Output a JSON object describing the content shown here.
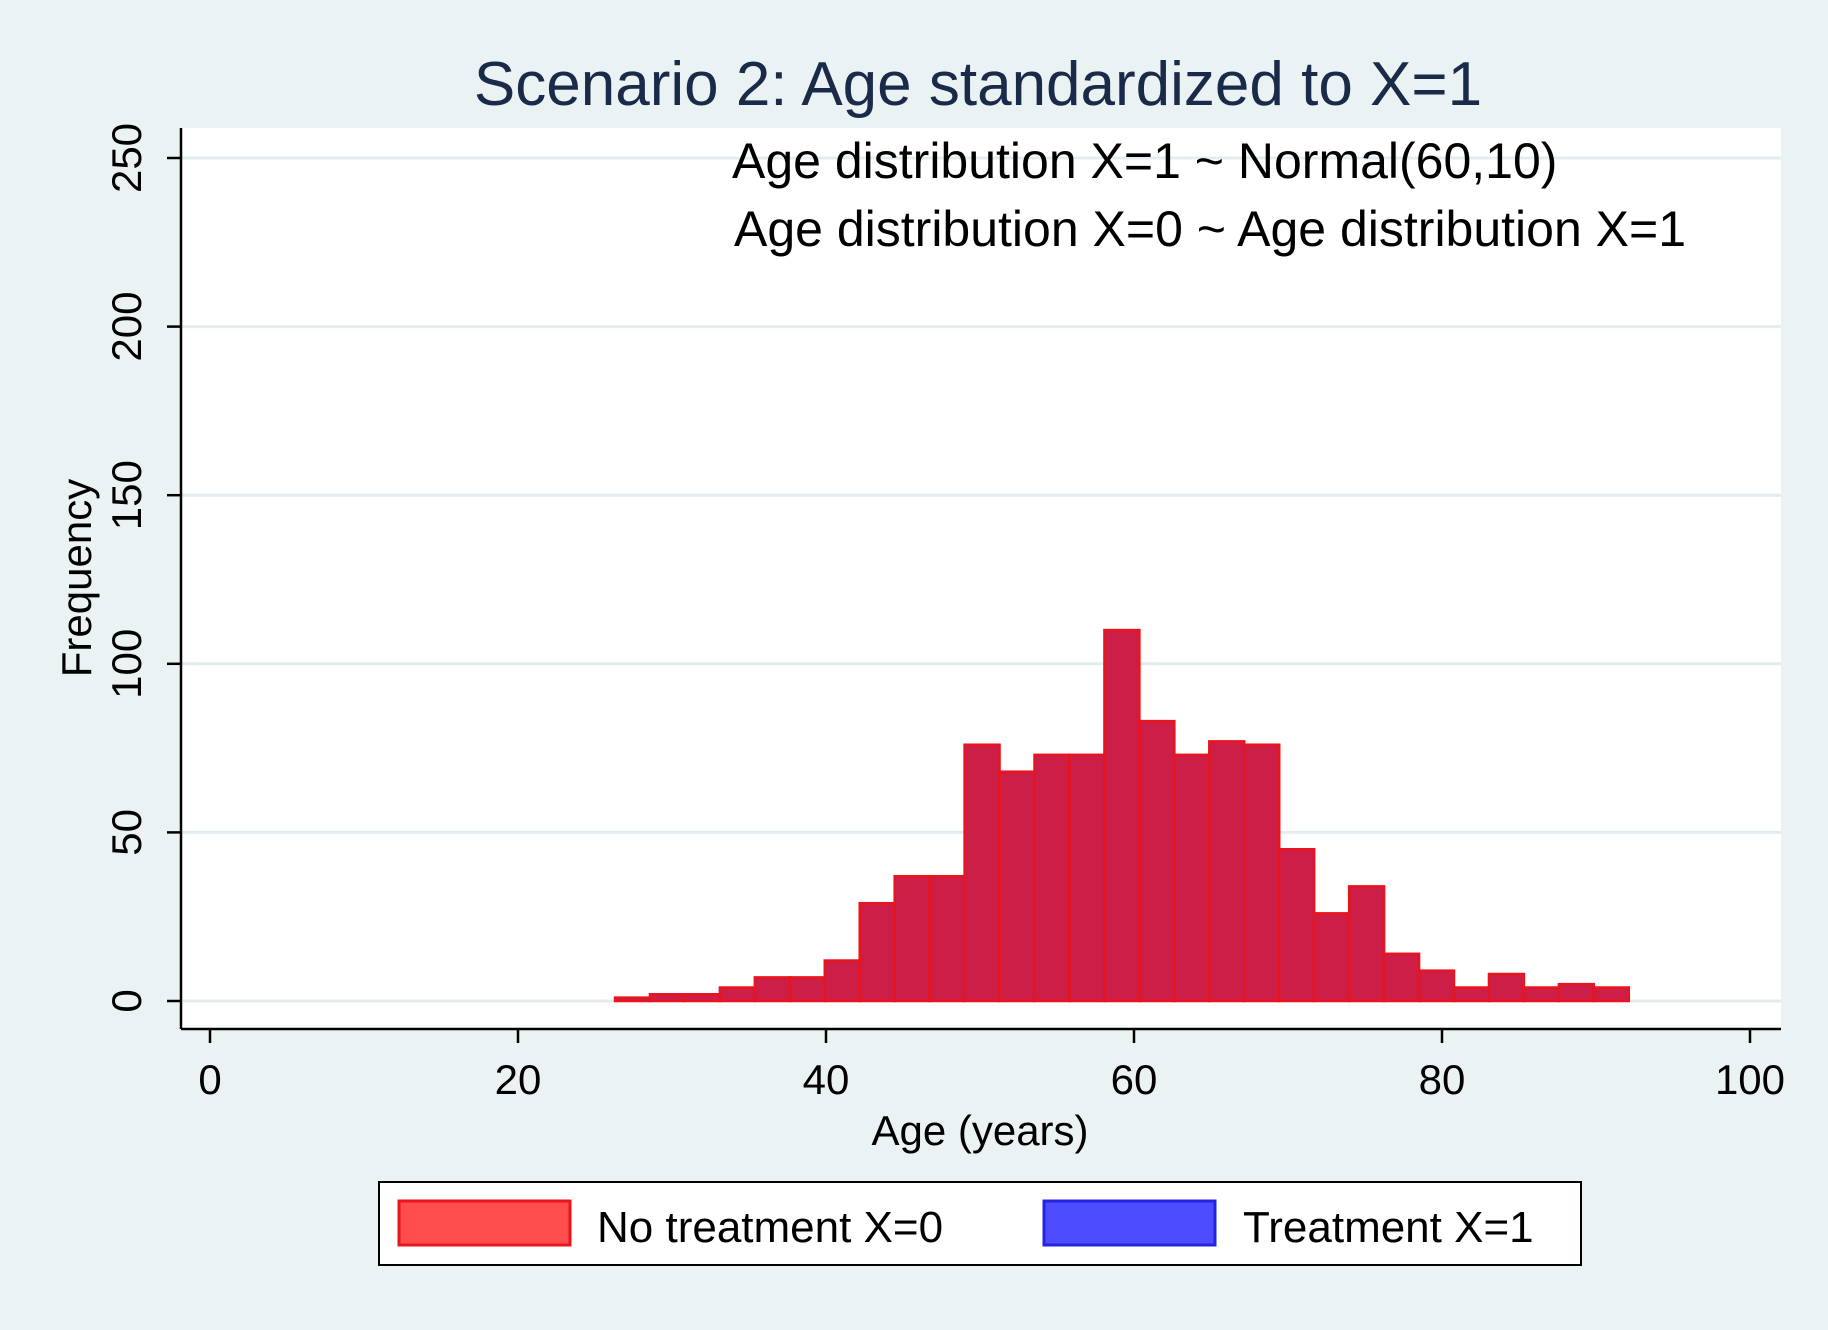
{
  "chart_data": {
    "type": "bar",
    "title": "Scenario 2: Age standardized to X=1",
    "annotations": [
      "Age distribution X=1 ~ Normal(60,10)",
      "Age distribution X=0 ~ Age distribution X=1"
    ],
    "xlabel": "Age (years)",
    "ylabel": "Frequency",
    "xlim": [
      0,
      100
    ],
    "ylim": [
      0,
      250
    ],
    "x_ticks": [
      0,
      20,
      40,
      60,
      80,
      100
    ],
    "y_ticks": [
      0,
      50,
      100,
      150,
      200,
      250
    ],
    "grid": true,
    "legend_position": "bottom",
    "bin_width": 2.27,
    "bin_start": 26.3,
    "values": [
      1,
      2,
      2,
      4,
      7,
      7,
      12,
      29,
      37,
      37,
      76,
      68,
      73,
      73,
      110,
      83,
      73,
      77,
      76,
      45,
      26,
      34,
      14,
      9,
      4,
      8,
      4,
      5,
      4
    ],
    "series": [
      {
        "name": "No treatment X=0",
        "color": "#ff4d4d",
        "edge": "#e8141e"
      },
      {
        "name": "Treatment X=1",
        "color": "#4d4dff",
        "edge": "#2424e0"
      }
    ],
    "overlap_color": "#cc1e46",
    "background": "#eaf2f3",
    "plot_background": "#ffffff"
  }
}
